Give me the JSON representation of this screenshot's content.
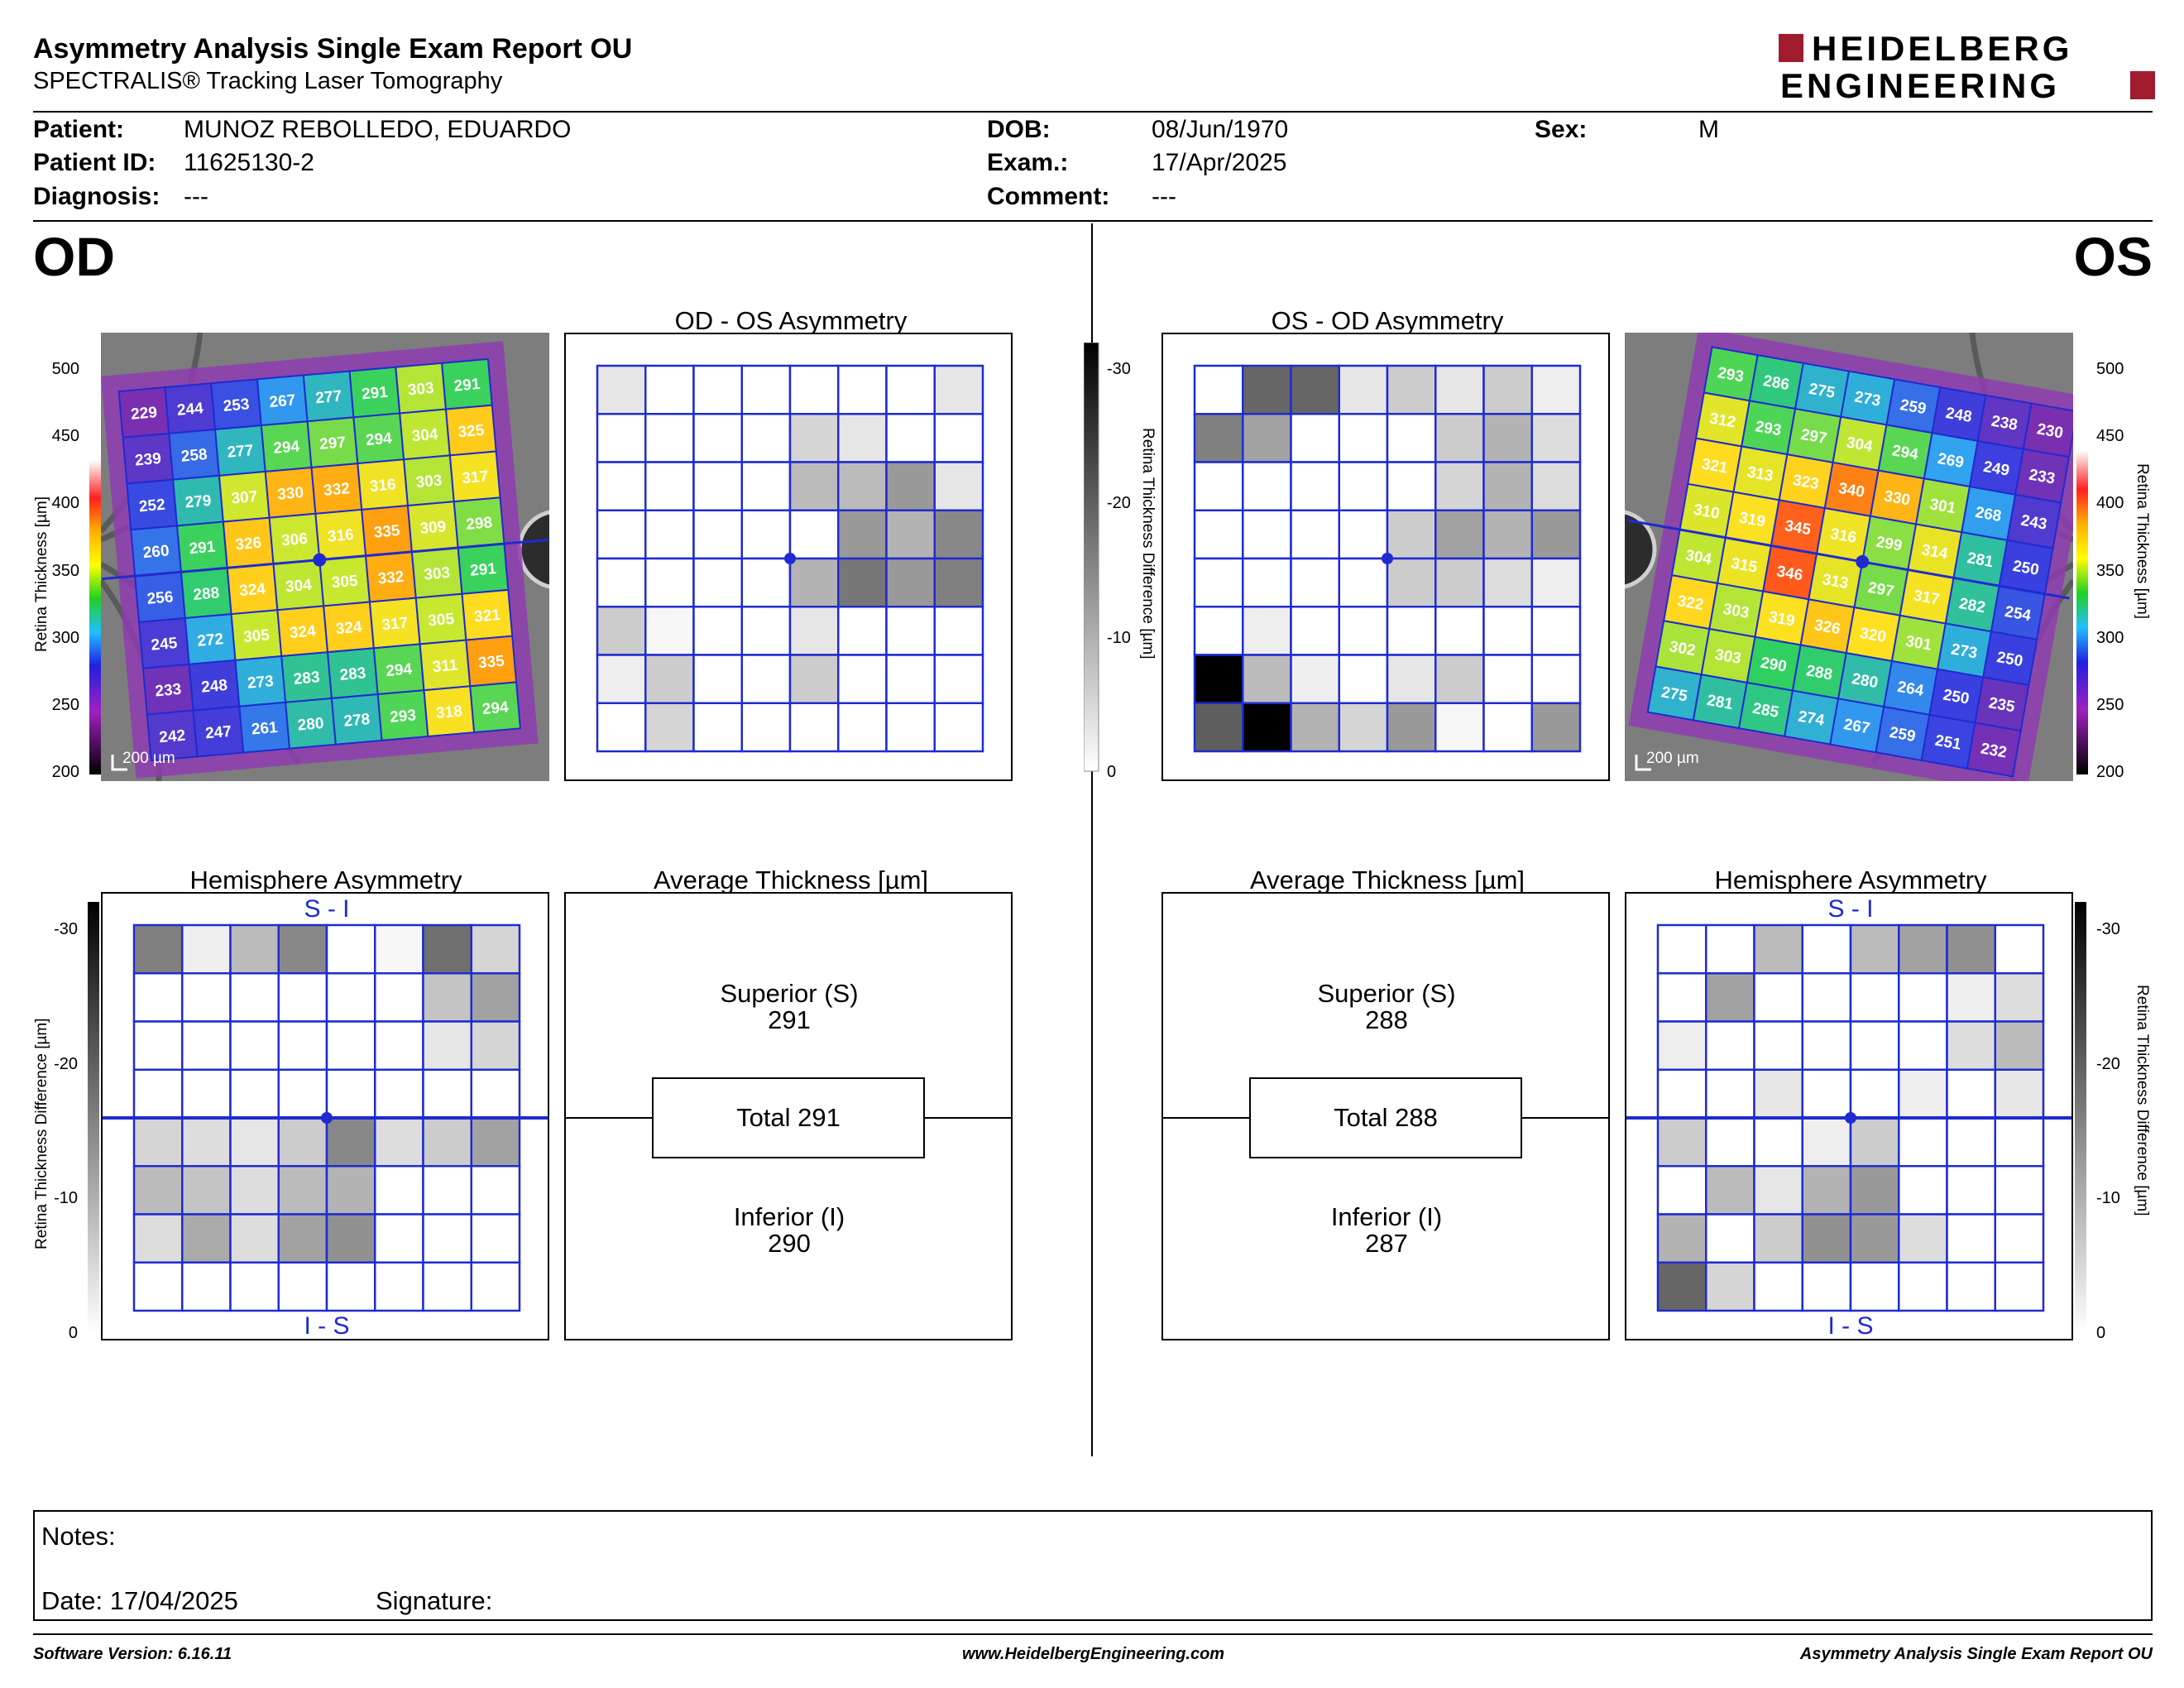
{
  "header": {
    "title": "Asymmetry Analysis Single Exam Report OU",
    "subtitle": "SPECTRALIS® Tracking Laser Tomography",
    "logo_line1": "HEIDELBERG",
    "logo_line2": "ENGINEERING"
  },
  "patient": {
    "patient_label": "Patient:",
    "patient_value": "MUNOZ REBOLLEDO, EDUARDO",
    "id_label": "Patient ID:",
    "id_value": "11625130-2",
    "diagnosis_label": "Diagnosis:",
    "diagnosis_value": "---",
    "dob_label": "DOB:",
    "dob_value": "08/Jun/1970",
    "exam_label": "Exam.:",
    "exam_value": "17/Apr/2025",
    "comment_label": "Comment:",
    "comment_value": "---",
    "sex_label": "Sex:",
    "sex_value": "M"
  },
  "eyes": {
    "left": "OD",
    "right": "OS"
  },
  "titles": {
    "od_os": "OD - OS Asymmetry",
    "os_od": "OS - OD Asymmetry",
    "hemi": "Hemisphere Asymmetry",
    "avg": "Average Thickness [µm]",
    "si": "S - I",
    "is": "I - S"
  },
  "scales": {
    "thickness_ticks": [
      "500",
      "450",
      "400",
      "350",
      "300",
      "250",
      "200"
    ],
    "thickness_label": "Retina Thickness [µm]",
    "diff_ticks": [
      "-30",
      "-20",
      "-10",
      "0"
    ],
    "diff_label": "Retina Thickness Difference [µm]",
    "scale_bar": "200 µm"
  },
  "od_grid": [
    [
      "229",
      "244",
      "253",
      "267",
      "277",
      "291",
      "303",
      "291"
    ],
    [
      "239",
      "258",
      "277",
      "294",
      "297",
      "294",
      "304",
      "325"
    ],
    [
      "252",
      "279",
      "307",
      "330",
      "332",
      "316",
      "303",
      "317"
    ],
    [
      "260",
      "291",
      "326",
      "306",
      "316",
      "335",
      "309",
      "298"
    ],
    [
      "256",
      "288",
      "324",
      "304",
      "305",
      "332",
      "303",
      "291"
    ],
    [
      "245",
      "272",
      "305",
      "324",
      "324",
      "317",
      "305",
      "321"
    ],
    [
      "233",
      "248",
      "273",
      "283",
      "283",
      "294",
      "311",
      "335"
    ],
    [
      "242",
      "247",
      "261",
      "280",
      "278",
      "293",
      "318",
      "294"
    ]
  ],
  "os_grid": [
    [
      "293",
      "286",
      "275",
      "273",
      "259",
      "248",
      "238",
      "230"
    ],
    [
      "312",
      "293",
      "297",
      "304",
      "294",
      "269",
      "249",
      "233"
    ],
    [
      "321",
      "313",
      "323",
      "340",
      "330",
      "301",
      "268",
      "243"
    ],
    [
      "310",
      "319",
      "345",
      "316",
      "299",
      "314",
      "281",
      "250"
    ],
    [
      "304",
      "315",
      "346",
      "313",
      "297",
      "317",
      "282",
      "254"
    ],
    [
      "322",
      "303",
      "319",
      "326",
      "320",
      "301",
      "273",
      "250"
    ],
    [
      "302",
      "303",
      "290",
      "288",
      "280",
      "264",
      "250",
      "235"
    ],
    [
      "275",
      "281",
      "285",
      "274",
      "267",
      "259",
      "251",
      "232"
    ]
  ],
  "od_os_asym": [
    [
      3,
      0,
      0,
      0,
      0,
      0,
      0,
      3
    ],
    [
      0,
      0,
      0,
      0,
      5,
      3,
      0,
      0
    ],
    [
      0,
      0,
      0,
      0,
      8,
      8,
      12,
      3
    ],
    [
      0,
      0,
      0,
      0,
      0,
      12,
      9,
      14
    ],
    [
      0,
      0,
      0,
      0,
      9,
      16,
      12,
      15
    ],
    [
      6,
      1,
      0,
      0,
      3,
      0,
      0,
      0
    ],
    [
      2,
      6,
      0,
      0,
      6,
      0,
      0,
      0
    ],
    [
      0,
      5,
      0,
      0,
      0,
      0,
      0,
      0
    ]
  ],
  "os_od_asym": [
    [
      0,
      18,
      18,
      3,
      6,
      3,
      6,
      2
    ],
    [
      15,
      11,
      0,
      0,
      0,
      6,
      9,
      4
    ],
    [
      0,
      0,
      0,
      0,
      0,
      5,
      9,
      4
    ],
    [
      0,
      0,
      0,
      0,
      6,
      11,
      9,
      12
    ],
    [
      0,
      0,
      0,
      0,
      6,
      6,
      4,
      2
    ],
    [
      0,
      2,
      0,
      0,
      0,
      0,
      0,
      0
    ],
    [
      30,
      8,
      2,
      0,
      3,
      6,
      0,
      0
    ],
    [
      19,
      30,
      9,
      5,
      12,
      1,
      0,
      12
    ]
  ],
  "od_hemi": [
    [
      15,
      2,
      8,
      14,
      0,
      1,
      17,
      5
    ],
    [
      0,
      0,
      0,
      0,
      0,
      0,
      7,
      11
    ],
    [
      0,
      0,
      0,
      0,
      0,
      0,
      3,
      5
    ],
    [
      0,
      0,
      0,
      0,
      0,
      0,
      0,
      0
    ],
    [
      5,
      4,
      3,
      6,
      14,
      4,
      6,
      11
    ],
    [
      8,
      7,
      4,
      8,
      9,
      0,
      0,
      0
    ],
    [
      4,
      10,
      4,
      11,
      13,
      0,
      0,
      0
    ],
    [
      0,
      0,
      0,
      0,
      0,
      0,
      0,
      0
    ]
  ],
  "os_hemi": [
    [
      0,
      0,
      8,
      0,
      8,
      11,
      13,
      0
    ],
    [
      0,
      11,
      0,
      0,
      0,
      0,
      2,
      4
    ],
    [
      2,
      0,
      0,
      0,
      0,
      0,
      4,
      8
    ],
    [
      0,
      0,
      3,
      0,
      0,
      2,
      0,
      3
    ],
    [
      6,
      0,
      0,
      2,
      6,
      0,
      0,
      0
    ],
    [
      0,
      8,
      3,
      9,
      12,
      0,
      0,
      0
    ],
    [
      9,
      0,
      6,
      13,
      12,
      4,
      0,
      0
    ],
    [
      18,
      5,
      0,
      0,
      0,
      0,
      0,
      0
    ]
  ],
  "od_avg": {
    "superior_label": "Superior (S)",
    "superior": "291",
    "total": "Total 291",
    "inferior_label": "Inferior (I)",
    "inferior": "290"
  },
  "os_avg": {
    "superior_label": "Superior (S)",
    "superior": "288",
    "total": "Total 288",
    "inferior_label": "Inferior (I)",
    "inferior": "287"
  },
  "notes": {
    "notes_label": "Notes:",
    "date": "Date: 17/04/2025",
    "signature": "Signature:"
  },
  "footer": {
    "version": "Software Version: 6.16.11",
    "website": "www.HeidelbergEngineering.com",
    "report": "Asymmetry Analysis Single Exam Report OU"
  }
}
